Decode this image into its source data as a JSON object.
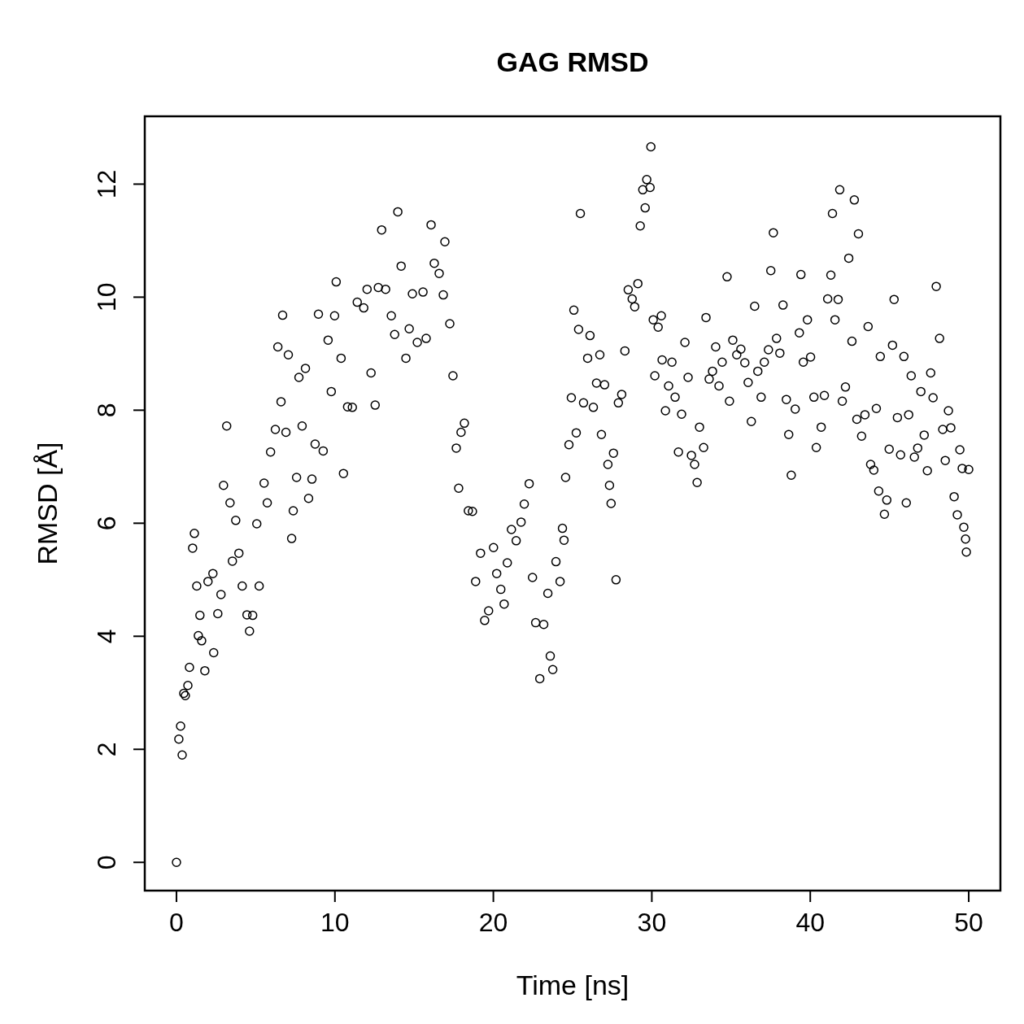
{
  "chart_data": {
    "type": "scatter",
    "title": "GAG RMSD",
    "xlabel": "Time [ns]",
    "ylabel": "RMSD [Å]",
    "marker": "circle",
    "color": "#000000",
    "xlim": [
      -2,
      52
    ],
    "ylim": [
      -0.5,
      13.2
    ],
    "xticks": [
      0,
      10,
      20,
      30,
      40,
      50
    ],
    "yticks": [
      0,
      2,
      4,
      6,
      8,
      10,
      12
    ],
    "x": [
      0,
      0.15,
      0.26,
      0.36,
      0.46,
      0.56,
      0.72,
      0.82,
      1.02,
      1.13,
      1.28,
      1.38,
      1.48,
      1.59,
      1.79,
      1.99,
      2.3,
      2.35,
      2.61,
      2.81,
      2.97,
      3.17,
      3.38,
      3.53,
      3.74,
      3.94,
      4.15,
      4.45,
      4.61,
      4.81,
      5.07,
      5.22,
      5.53,
      5.73,
      5.94,
      6.24,
      6.4,
      6.6,
      6.7,
      6.91,
      7.06,
      7.27,
      7.37,
      7.58,
      7.73,
      7.93,
      8.14,
      8.34,
      8.55,
      8.75,
      8.96,
      9.26,
      9.57,
      9.77,
      9.98,
      10.08,
      10.39,
      10.54,
      10.8,
      11.1,
      11.41,
      11.82,
      12.03,
      12.28,
      12.54,
      12.74,
      12.95,
      13.2,
      13.56,
      13.77,
      13.97,
      14.18,
      14.48,
      14.69,
      14.89,
      15.2,
      15.56,
      15.76,
      16.07,
      16.27,
      16.58,
      16.84,
      16.94,
      17.25,
      17.45,
      17.66,
      17.81,
      17.96,
      18.17,
      18.42,
      18.68,
      18.88,
      19.19,
      19.45,
      19.7,
      20.01,
      20.21,
      20.47,
      20.68,
      20.88,
      21.14,
      21.44,
      21.75,
      21.95,
      22.26,
      22.47,
      22.67,
      22.93,
      23.18,
      23.44,
      23.59,
      23.75,
      23.95,
      24.21,
      24.36,
      24.46,
      24.56,
      24.77,
      24.92,
      25.08,
      25.23,
      25.38,
      25.49,
      25.69,
      25.95,
      26.1,
      26.31,
      26.51,
      26.72,
      26.82,
      27.02,
      27.23,
      27.33,
      27.43,
      27.58,
      27.74,
      27.89,
      28.1,
      28.3,
      28.51,
      28.76,
      28.92,
      29.12,
      29.27,
      29.43,
      29.58,
      29.68,
      29.89,
      29.94,
      30.09,
      30.19,
      30.4,
      30.6,
      30.65,
      30.86,
      31.06,
      31.27,
      31.47,
      31.68,
      31.88,
      32.09,
      32.29,
      32.5,
      32.7,
      32.86,
      33.01,
      33.27,
      33.42,
      33.62,
      33.83,
      34.03,
      34.24,
      34.44,
      34.75,
      34.9,
      35.11,
      35.36,
      35.62,
      35.87,
      36.08,
      36.28,
      36.49,
      36.69,
      36.9,
      37.1,
      37.36,
      37.51,
      37.67,
      37.87,
      38.08,
      38.28,
      38.49,
      38.64,
      38.8,
      39.05,
      39.31,
      39.41,
      39.56,
      39.82,
      40.02,
      40.23,
      40.38,
      40.69,
      40.89,
      41.1,
      41.3,
      41.4,
      41.56,
      41.76,
      41.86,
      42.02,
      42.22,
      42.43,
      42.63,
      42.78,
      42.94,
      43.04,
      43.24,
      43.45,
      43.65,
      43.81,
      44.01,
      44.17,
      44.32,
      44.42,
      44.68,
      44.83,
      44.98,
      45.19,
      45.29,
      45.5,
      45.7,
      45.91,
      46.06,
      46.21,
      46.37,
      46.57,
      46.78,
      46.98,
      47.19,
      47.39,
      47.6,
      47.75,
      47.95,
      48.16,
      48.36,
      48.52,
      48.72,
      48.87,
      49.08,
      49.28,
      49.44,
      49.59,
      49.69,
      49.8,
      49.85,
      50
    ],
    "values": [
      0,
      2.18,
      2.41,
      1.9,
      2.99,
      2.95,
      3.13,
      3.45,
      5.56,
      5.82,
      4.89,
      4.01,
      4.37,
      3.92,
      3.39,
      4.97,
      5.11,
      3.71,
      4.4,
      4.74,
      6.67,
      7.72,
      6.36,
      5.33,
      6.05,
      5.47,
      4.89,
      4.38,
      4.09,
      4.37,
      5.99,
      4.89,
      6.71,
      6.36,
      7.26,
      7.66,
      9.12,
      8.15,
      9.68,
      7.61,
      8.98,
      5.73,
      6.22,
      6.81,
      8.58,
      7.72,
      8.74,
      6.44,
      6.78,
      7.4,
      9.7,
      7.28,
      9.24,
      8.33,
      9.67,
      10.27,
      8.92,
      6.88,
      8.06,
      8.05,
      9.91,
      9.81,
      10.14,
      8.66,
      8.09,
      10.17,
      11.19,
      10.14,
      9.67,
      9.34,
      11.51,
      10.55,
      8.92,
      9.44,
      10.06,
      9.2,
      10.09,
      9.27,
      11.28,
      10.6,
      10.42,
      10.04,
      10.98,
      9.53,
      8.61,
      7.33,
      6.62,
      7.61,
      7.77,
      6.22,
      6.21,
      4.97,
      5.47,
      4.28,
      4.45,
      5.57,
      5.11,
      4.83,
      4.57,
      5.3,
      5.89,
      5.69,
      6.02,
      6.34,
      6.7,
      5.04,
      4.24,
      3.25,
      4.21,
      4.76,
      3.65,
      3.41,
      5.32,
      4.97,
      5.91,
      5.7,
      6.81,
      7.39,
      8.22,
      9.77,
      7.6,
      9.43,
      11.48,
      8.13,
      8.92,
      9.32,
      8.05,
      8.48,
      8.98,
      7.57,
      8.45,
      7.04,
      6.67,
      6.35,
      7.24,
      5,
      8.13,
      8.28,
      9.05,
      10.13,
      9.97,
      9.83,
      10.24,
      11.26,
      11.9,
      11.58,
      12.08,
      11.94,
      12.66,
      9.6,
      8.61,
      9.47,
      9.67,
      8.89,
      7.99,
      8.43,
      8.85,
      8.23,
      7.26,
      7.93,
      9.2,
      8.58,
      7.2,
      7.04,
      6.72,
      7.7,
      7.34,
      9.64,
      8.55,
      8.69,
      9.12,
      8.43,
      8.85,
      10.36,
      8.16,
      9.24,
      8.98,
      9.08,
      8.84,
      8.49,
      7.8,
      9.84,
      8.69,
      8.23,
      8.85,
      9.07,
      10.47,
      11.14,
      9.27,
      9.01,
      9.86,
      8.19,
      7.57,
      6.85,
      8.02,
      9.37,
      10.4,
      8.85,
      9.6,
      8.94,
      8.23,
      7.34,
      7.7,
      8.26,
      9.97,
      10.39,
      11.48,
      9.6,
      9.96,
      11.9,
      8.16,
      8.41,
      10.69,
      9.22,
      11.72,
      7.84,
      11.12,
      7.54,
      7.92,
      9.48,
      7.04,
      6.94,
      8.03,
      6.57,
      8.95,
      6.16,
      6.41,
      7.31,
      9.15,
      9.96,
      7.87,
      7.21,
      8.95,
      6.36,
      7.92,
      8.61,
      7.17,
      7.33,
      8.33,
      7.56,
      6.93,
      8.66,
      8.22,
      10.19,
      9.27,
      7.66,
      7.11,
      7.99,
      7.69,
      6.47,
      6.15,
      7.3,
      6.97,
      5.93,
      5.72,
      5.49,
      6.95
    ]
  }
}
